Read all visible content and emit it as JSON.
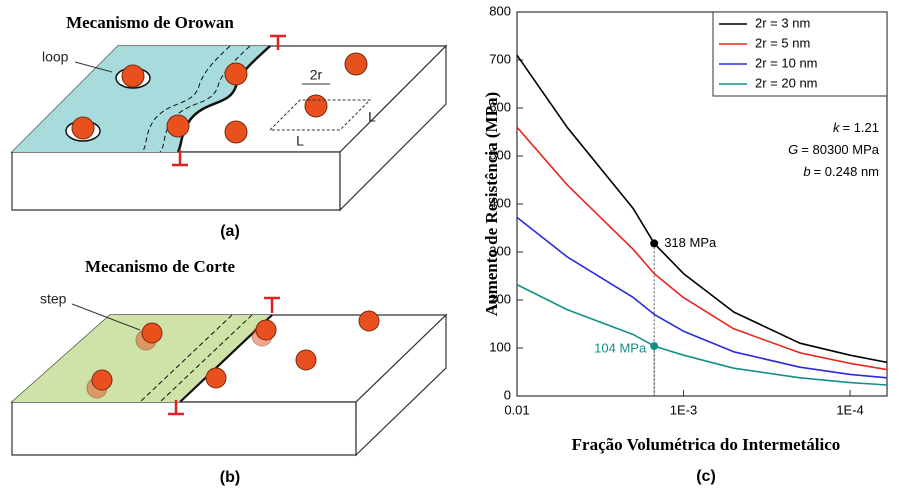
{
  "panels": [
    {
      "title": "Mecanismo de Orowan",
      "labels": [
        "loop",
        "2r",
        "L",
        "L"
      ],
      "caption": "(a)"
    },
    {
      "title": "Mecanismo de Corte",
      "labels": [
        "step"
      ],
      "caption": "(b)"
    }
  ],
  "chart_data": {
    "type": "line",
    "x_label": "Fração Volumétrica do Intermetálico",
    "y_label": "Aumento de Resistência (MPa)",
    "caption": "(c)",
    "x": [
      0.01,
      0.005,
      0.002,
      0.0015,
      0.001,
      0.0005,
      0.0002,
      0.0001,
      6e-05
    ],
    "series": [
      {
        "name": "2r = 3 nm",
        "color": "#000000",
        "values": [
          710,
          560,
          390,
          318,
          255,
          175,
          110,
          85,
          70
        ]
      },
      {
        "name": "2r = 5 nm",
        "color": "#e8261e",
        "values": [
          560,
          440,
          305,
          255,
          205,
          140,
          90,
          68,
          55
        ]
      },
      {
        "name": "2r = 10 nm",
        "color": "#2a2ae0",
        "values": [
          372,
          290,
          205,
          170,
          135,
          92,
          60,
          45,
          38
        ]
      },
      {
        "name": "2r = 20 nm",
        "color": "#12908a",
        "values": [
          232,
          180,
          128,
          104,
          85,
          58,
          38,
          28,
          23
        ]
      }
    ],
    "xlim": [
      0.01,
      6e-05
    ],
    "log_x": true,
    "xticks": [
      0.01,
      {
        "value": 0.001,
        "label": "1E-3"
      },
      {
        "value": 0.0001,
        "label": "1E-4"
      }
    ],
    "ylim": [
      0,
      800
    ],
    "yticks": [
      0,
      100,
      200,
      300,
      400,
      500,
      600,
      700,
      800
    ],
    "legend": "upper right",
    "markers": [
      {
        "x": 0.0015,
        "y": 318,
        "label": "318 MPa",
        "color": "#000000"
      },
      {
        "x": 0.0015,
        "y": 104,
        "label": "104 MPa",
        "color": "#12908a"
      }
    ],
    "constants": [
      {
        "symbol": "k",
        "text": "= 1.21"
      },
      {
        "symbol": "G",
        "text": "= 80300 MPa"
      },
      {
        "symbol": "b",
        "text": "= 0.248 nm"
      }
    ]
  }
}
